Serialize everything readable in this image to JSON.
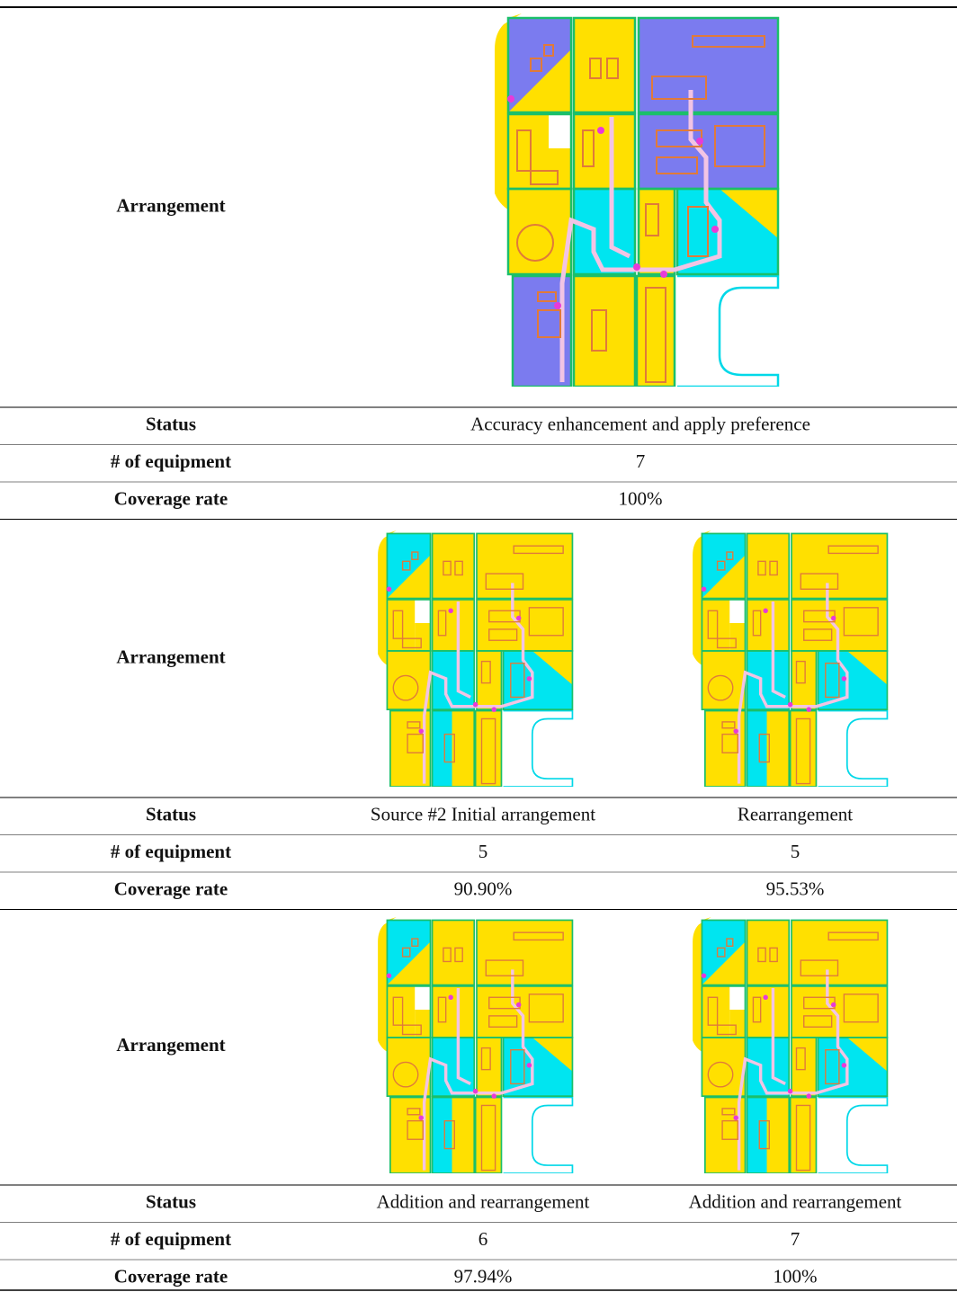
{
  "sections": [
    {
      "arrangement_label": "Arrangement",
      "status_label": "Status",
      "status": [
        "Accuracy enhancement and apply preference"
      ],
      "equipment_label": "# of equipment",
      "equipment": [
        "7"
      ],
      "coverage_label": "Coverage rate",
      "coverage": [
        "100%"
      ]
    },
    {
      "arrangement_label": "Arrangement",
      "status_label": "Status",
      "status": [
        "Source #2 Initial arrangement",
        "Rearrangement"
      ],
      "equipment_label": "# of equipment",
      "equipment": [
        "5",
        "5"
      ],
      "coverage_label": "Coverage rate",
      "coverage": [
        "90.90%",
        "95.53%"
      ]
    },
    {
      "arrangement_label": "Arrangement",
      "status_label": "Status",
      "status": [
        "Addition and rearrangement",
        "Addition and rearrangement"
      ],
      "equipment_label": "# of equipment",
      "equipment": [
        "6",
        "7"
      ],
      "coverage_label": "Coverage rate",
      "coverage": [
        "97.94%",
        "100%"
      ]
    }
  ]
}
